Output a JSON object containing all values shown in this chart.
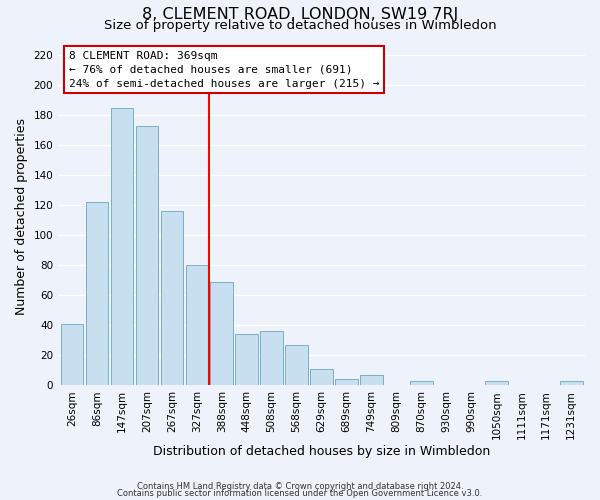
{
  "title": "8, CLEMENT ROAD, LONDON, SW19 7RJ",
  "subtitle": "Size of property relative to detached houses in Wimbledon",
  "xlabel": "Distribution of detached houses by size in Wimbledon",
  "ylabel": "Number of detached properties",
  "categories": [
    "26sqm",
    "86sqm",
    "147sqm",
    "207sqm",
    "267sqm",
    "327sqm",
    "388sqm",
    "448sqm",
    "508sqm",
    "568sqm",
    "629sqm",
    "689sqm",
    "749sqm",
    "809sqm",
    "870sqm",
    "930sqm",
    "990sqm",
    "1050sqm",
    "1111sqm",
    "1171sqm",
    "1231sqm"
  ],
  "values": [
    41,
    122,
    185,
    173,
    116,
    80,
    69,
    34,
    36,
    27,
    11,
    4,
    7,
    0,
    3,
    0,
    0,
    3,
    0,
    0,
    3
  ],
  "bar_color": "#c8dff0",
  "bar_edge_color": "#7ab0cc",
  "vline_x": 6.0,
  "annotation_title": "8 CLEMENT ROAD: 369sqm",
  "annotation_line1": "← 76% of detached houses are smaller (691)",
  "annotation_line2": "24% of semi-detached houses are larger (215) →",
  "annotation_box_color": "#ffffff",
  "annotation_box_edge": "#cc0000",
  "ylim": [
    0,
    225
  ],
  "yticks": [
    0,
    20,
    40,
    60,
    80,
    100,
    120,
    140,
    160,
    180,
    200,
    220
  ],
  "footer1": "Contains HM Land Registry data © Crown copyright and database right 2024.",
  "footer2": "Contains public sector information licensed under the Open Government Licence v3.0.",
  "bg_color": "#eef2fb",
  "grid_color": "#ffffff",
  "title_fontsize": 11.5,
  "subtitle_fontsize": 9.5,
  "tick_fontsize": 7.5,
  "label_fontsize": 9,
  "footer_fontsize": 6
}
